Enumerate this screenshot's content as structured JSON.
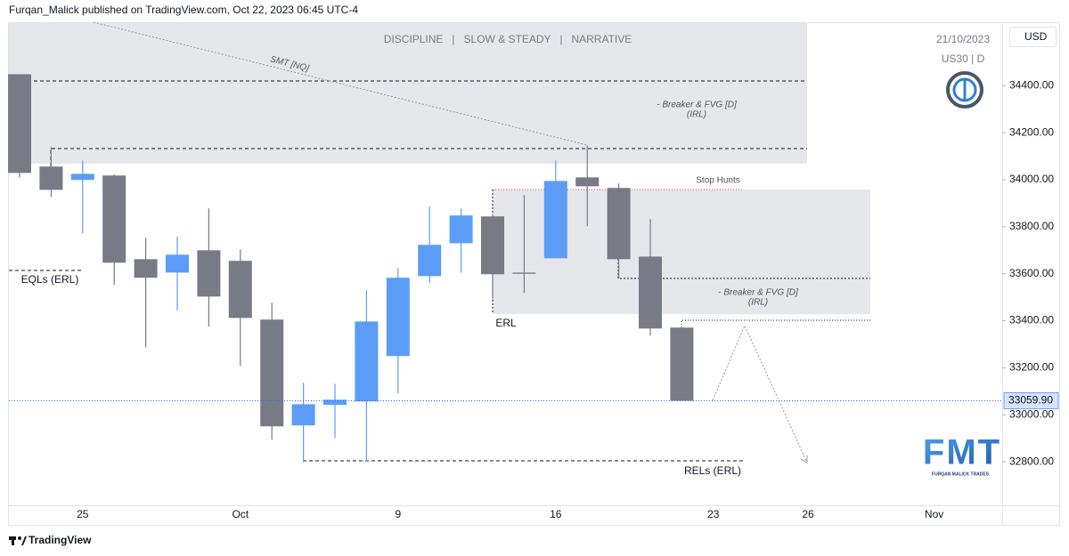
{
  "chart_data": {
    "type": "candlestick",
    "header": "Furqan_Malick published on TradingView.com, Oct 22, 2023 06:45 UTC-4",
    "title": "DISCIPLINE   |   SLOW & STEADY   |   NARRATIVE",
    "date": "21/10/2023",
    "symbol": "US30 | D",
    "currency": "USD",
    "annotations": {
      "smt": "SMT [NQ]",
      "breaker_top": "- Breaker & FVG [D]",
      "irl_top": "(IRL)",
      "stop_hunts": "Stop Hunts",
      "breaker_mid": "- Breaker & FVG [D]",
      "irl_mid": "(IRL)",
      "eqls": "EQLs (ERL)",
      "erl": "ERL",
      "rels": "RELs (ERL)"
    },
    "logo": {
      "title": "FMT",
      "subtitle": "FURQAN MALICK TRADES"
    },
    "footer": "TradingView",
    "categories": [
      null,
      null,
      "25",
      null,
      null,
      null,
      null,
      "Oct",
      null,
      null,
      null,
      null,
      "9",
      null,
      null,
      null,
      null,
      "16",
      null,
      null,
      null,
      null,
      "23",
      null,
      null,
      "26",
      null,
      null,
      null,
      "Nov",
      null,
      null
    ],
    "open": [
      34449,
      34056,
      33999,
      34018,
      33662,
      33605,
      33700,
      33655,
      33405,
      32955,
      33042,
      33057,
      33250,
      33590,
      33730,
      33844,
      33605,
      33666,
      34010,
      33965,
      33673,
      33371,
      null,
      null,
      null,
      null,
      null,
      null,
      null,
      null,
      null,
      null
    ],
    "high": [
      34449,
      34139,
      34082,
      34022,
      33753,
      33757,
      33878,
      33704,
      33477,
      33136,
      33132,
      33530,
      33624,
      33885,
      33878,
      33855,
      33935,
      34082,
      34146,
      33984,
      33832,
      33371,
      null,
      null,
      null,
      null,
      null,
      null,
      null,
      null,
      null,
      null
    ],
    "low": [
      34010,
      33927,
      33772,
      33552,
      33287,
      33443,
      33375,
      33208,
      32894,
      32799,
      32902,
      32803,
      33091,
      33560,
      33605,
      33492,
      33518,
      33666,
      33802,
      33579,
      33337,
      33059.9,
      null,
      null,
      null,
      null,
      null,
      null,
      null,
      null,
      null,
      null
    ],
    "close": [
      34029,
      33957,
      34025,
      33647,
      33583,
      33681,
      33503,
      33412,
      32951,
      33045,
      33064,
      33397,
      33583,
      33723,
      33848,
      33598,
      33600,
      33995,
      33972,
      33662,
      33367,
      33059.9,
      null,
      null,
      null,
      null,
      null,
      null,
      null,
      null,
      null,
      null
    ],
    "up_color": "#5b9cf6",
    "down_color": "#787b86",
    "ylim": [
      32615,
      34670
    ],
    "yticks": [
      {
        "value": 32800,
        "label": "32800.00"
      },
      {
        "value": 33000,
        "label": "33000.00"
      },
      {
        "value": 33200,
        "label": "33200.00"
      },
      {
        "value": 33400,
        "label": "33400.00"
      },
      {
        "value": 33600,
        "label": "33600.00"
      },
      {
        "value": 33800,
        "label": "33800.00"
      },
      {
        "value": 34000,
        "label": "34000.00"
      },
      {
        "value": 34200,
        "label": "34200.00"
      },
      {
        "value": 34400,
        "label": "34400.00"
      }
    ],
    "last_price": {
      "value": 33059.9,
      "label": "33059.90"
    }
  }
}
